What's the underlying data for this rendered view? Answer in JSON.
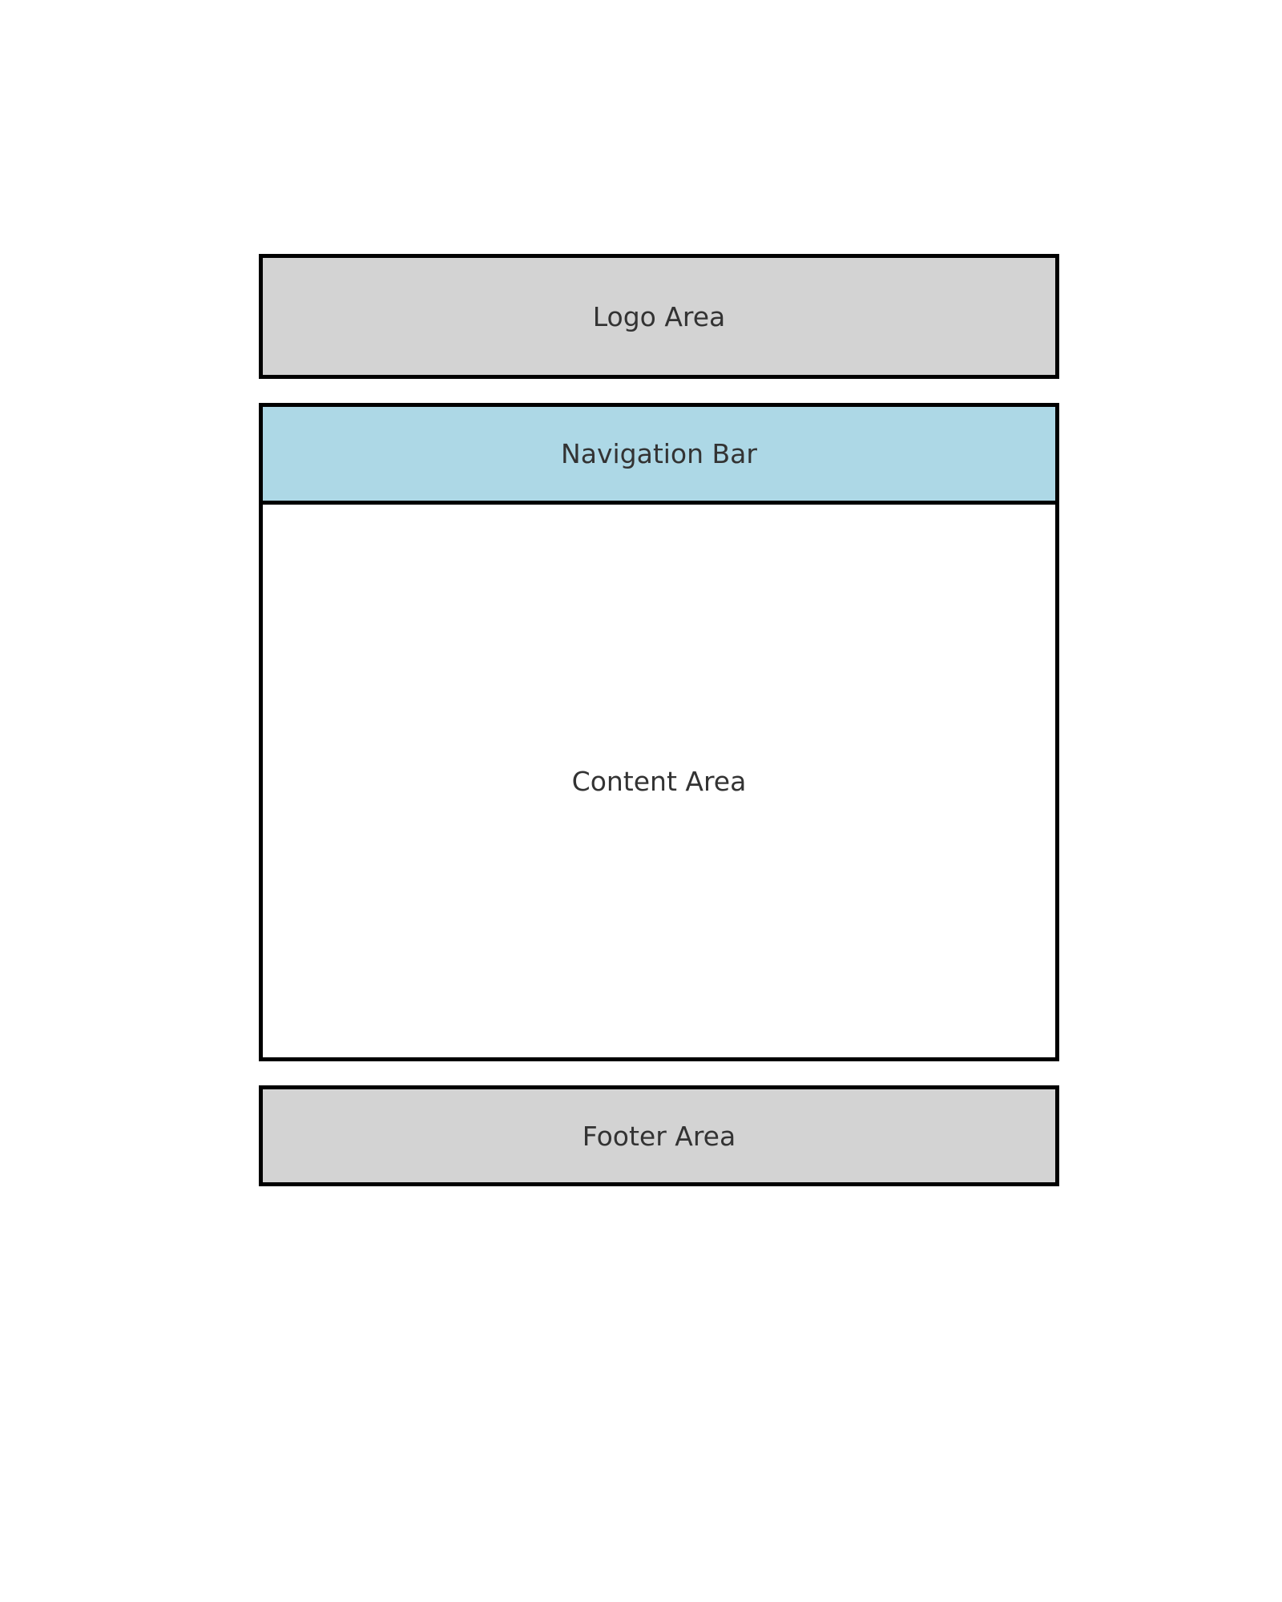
{
  "layout": {
    "logo_area": {
      "label": "Logo Area",
      "fill": "#d3d3d3"
    },
    "navigation_bar": {
      "label": "Navigation Bar",
      "fill": "#add8e6"
    },
    "content_area": {
      "label": "Content Area",
      "fill": "#ffffff"
    },
    "footer_area": {
      "label": "Footer Area",
      "fill": "#d3d3d3"
    }
  },
  "colors": {
    "border": "#000000",
    "text": "#333333",
    "background": "#ffffff"
  }
}
